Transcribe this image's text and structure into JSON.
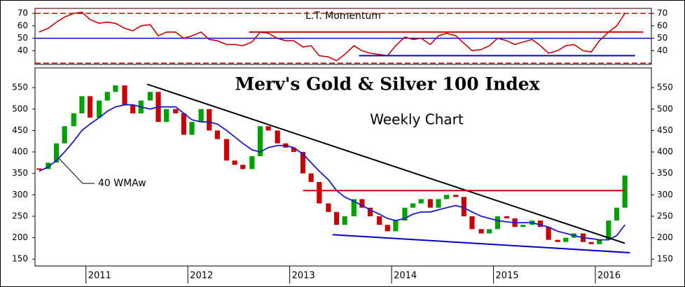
{
  "chart_data": [
    {
      "type": "line",
      "title": "L.T. Momentum",
      "x": [
        2010.54,
        2010.63,
        2010.71,
        2010.79,
        2010.88,
        2010.96,
        2011.04,
        2011.13,
        2011.21,
        2011.29,
        2011.38,
        2011.46,
        2011.54,
        2011.63,
        2011.71,
        2011.79,
        2011.88,
        2011.96,
        2012.04,
        2012.13,
        2012.21,
        2012.29,
        2012.38,
        2012.46,
        2012.54,
        2012.63,
        2012.71,
        2012.79,
        2012.88,
        2012.96,
        2013.04,
        2013.13,
        2013.21,
        2013.29,
        2013.38,
        2013.46,
        2013.54,
        2013.63,
        2013.71,
        2013.79,
        2013.88,
        2013.96,
        2014.04,
        2014.13,
        2014.21,
        2014.29,
        2014.38,
        2014.46,
        2014.54,
        2014.63,
        2014.71,
        2014.79,
        2014.88,
        2014.96,
        2015.04,
        2015.13,
        2015.21,
        2015.29,
        2015.38,
        2015.46,
        2015.54,
        2015.63,
        2015.71,
        2015.79,
        2015.88,
        2015.96,
        2016.04,
        2016.13,
        2016.21,
        2016.29
      ],
      "values": [
        55,
        58,
        63,
        67,
        70,
        71,
        65,
        62,
        63,
        62,
        58,
        56,
        60,
        61,
        52,
        55,
        55,
        50,
        52,
        55,
        49,
        48,
        45,
        45,
        44,
        47,
        55,
        54,
        50,
        48,
        48,
        43,
        44,
        36,
        35,
        32,
        37,
        44,
        40,
        38,
        37,
        36,
        44,
        51,
        49,
        50,
        45,
        52,
        54,
        52,
        46,
        40,
        41,
        44,
        50,
        48,
        45,
        47,
        49,
        44,
        38,
        40,
        44,
        45,
        40,
        39,
        48,
        55,
        60,
        70
      ],
      "color": "#cc0000",
      "xlim": [
        2010.5,
        2016.55
      ],
      "ylim": [
        29,
        74
      ],
      "yticks": [
        40,
        50,
        60,
        70
      ],
      "reference_lines": [
        {
          "y": 70,
          "style": "dashed",
          "color": "#cc0000"
        },
        {
          "y": 30,
          "style": "dashed",
          "color": "#cc0000"
        },
        {
          "y": 50,
          "style": "solid",
          "color": "#0000cc"
        }
      ],
      "segments": [
        {
          "x": [
            2012.6,
            2016.47
          ],
          "y": [
            55,
            55
          ],
          "color": "#cc0000"
        },
        {
          "x": [
            2013.68,
            2016.39
          ],
          "y": [
            36,
            36
          ],
          "color": "#0000cc"
        }
      ]
    },
    {
      "type": "candlestick",
      "title": "Merv's Gold & Silver 100 Index",
      "subtitle": "Weekly Chart",
      "x": [
        2010.54,
        2010.63,
        2010.71,
        2010.79,
        2010.88,
        2010.96,
        2011.04,
        2011.13,
        2011.21,
        2011.29,
        2011.38,
        2011.46,
        2011.54,
        2011.63,
        2011.71,
        2011.79,
        2011.88,
        2011.96,
        2012.04,
        2012.13,
        2012.21,
        2012.29,
        2012.38,
        2012.46,
        2012.54,
        2012.63,
        2012.71,
        2012.79,
        2012.88,
        2012.96,
        2013.04,
        2013.13,
        2013.21,
        2013.29,
        2013.38,
        2013.46,
        2013.54,
        2013.63,
        2013.71,
        2013.79,
        2013.88,
        2013.96,
        2014.04,
        2014.13,
        2014.21,
        2014.29,
        2014.38,
        2014.46,
        2014.54,
        2014.63,
        2014.71,
        2014.79,
        2014.88,
        2014.96,
        2015.04,
        2015.13,
        2015.21,
        2015.29,
        2015.38,
        2015.46,
        2015.54,
        2015.63,
        2015.71,
        2015.79,
        2015.88,
        2015.96,
        2016.04,
        2016.13,
        2016.21,
        2016.29
      ],
      "values": [
        360,
        375,
        420,
        460,
        490,
        530,
        480,
        520,
        540,
        555,
        510,
        490,
        520,
        540,
        470,
        500,
        490,
        440,
        470,
        500,
        450,
        430,
        380,
        370,
        360,
        390,
        460,
        450,
        420,
        410,
        400,
        350,
        330,
        280,
        260,
        230,
        250,
        290,
        270,
        250,
        230,
        215,
        240,
        270,
        280,
        290,
        270,
        290,
        300,
        295,
        250,
        220,
        210,
        220,
        250,
        245,
        225,
        230,
        240,
        225,
        195,
        190,
        200,
        210,
        190,
        185,
        195,
        240,
        270,
        345
      ],
      "up_color": "#00a000",
      "down_color": "#cc0000",
      "overlay": {
        "name": "40 WMAw",
        "color": "#1a1acc",
        "values": [
          355,
          365,
          380,
          400,
          425,
          450,
          465,
          480,
          495,
          505,
          510,
          510,
          505,
          500,
          505,
          505,
          505,
          490,
          475,
          470,
          470,
          465,
          450,
          435,
          420,
          405,
          400,
          410,
          415,
          415,
          410,
          395,
          375,
          355,
          335,
          310,
          295,
          285,
          275,
          265,
          255,
          245,
          240,
          245,
          255,
          260,
          260,
          265,
          270,
          275,
          270,
          260,
          250,
          245,
          240,
          237,
          235,
          235,
          235,
          230,
          225,
          215,
          210,
          205,
          200,
          198,
          195,
          195,
          205,
          230
        ]
      },
      "xlim": [
        2010.5,
        2016.55
      ],
      "xticks": [
        2011,
        2012,
        2013,
        2014,
        2015,
        2016
      ],
      "ylim": [
        134,
        596
      ],
      "yticks": [
        150,
        200,
        250,
        300,
        350,
        400,
        450,
        500,
        550
      ],
      "segments": [
        {
          "x": [
            2011.6,
            2016.29
          ],
          "y": [
            558,
            187
          ],
          "color": "#000000"
        },
        {
          "x": [
            2013.13,
            2016.29
          ],
          "y": [
            310,
            310
          ],
          "color": "#cc0000"
        },
        {
          "x": [
            2013.42,
            2016.34
          ],
          "y": [
            207,
            165
          ],
          "color": "#0000cc"
        }
      ]
    }
  ]
}
